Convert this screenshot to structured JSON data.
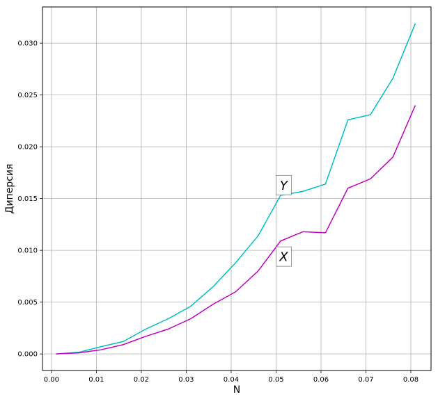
{
  "chart_data": {
    "type": "line",
    "title": "",
    "xlabel": "N",
    "ylabel": "Диперсия",
    "xlim": [
      -0.002,
      0.0845
    ],
    "ylim": [
      -0.0016,
      0.0335
    ],
    "xticks": [
      0.0,
      0.01,
      0.02,
      0.03,
      0.04,
      0.05,
      0.06,
      0.07,
      0.08
    ],
    "xtick_labels": [
      "0.00",
      "0.01",
      "0.02",
      "0.03",
      "0.04",
      "0.05",
      "0.06",
      "0.07",
      "0.08"
    ],
    "yticks": [
      0.0,
      0.005,
      0.01,
      0.015,
      0.02,
      0.025,
      0.03
    ],
    "ytick_labels": [
      "0.000",
      "0.005",
      "0.010",
      "0.015",
      "0.020",
      "0.025",
      "0.030"
    ],
    "grid": true,
    "x": [
      0.001,
      0.006,
      0.011,
      0.016,
      0.021,
      0.026,
      0.031,
      0.036,
      0.041,
      0.046,
      0.051,
      0.056,
      0.061,
      0.066,
      0.071,
      0.076,
      0.081
    ],
    "series": [
      {
        "label": "Y",
        "color": "#00bfbf",
        "values": [
          0.0,
          0.00015,
          0.0007,
          0.0012,
          0.0024,
          0.0034,
          0.0046,
          0.0065,
          0.0088,
          0.0114,
          0.0153,
          0.0157,
          0.0164,
          0.0226,
          0.0231,
          0.0266,
          0.0319
        ]
      },
      {
        "label": "X",
        "color": "#bf00bf",
        "values": [
          0.0,
          0.0001,
          0.0004,
          0.0009,
          0.0017,
          0.0024,
          0.0034,
          0.0048,
          0.006,
          0.008,
          0.0109,
          0.0118,
          0.0117,
          0.016,
          0.0169,
          0.019,
          0.024
        ]
      }
    ],
    "annotations": [
      {
        "text": "Y",
        "x": 0.0517,
        "y": 0.0163
      },
      {
        "text": "X",
        "x": 0.0517,
        "y": 0.0094
      }
    ]
  }
}
